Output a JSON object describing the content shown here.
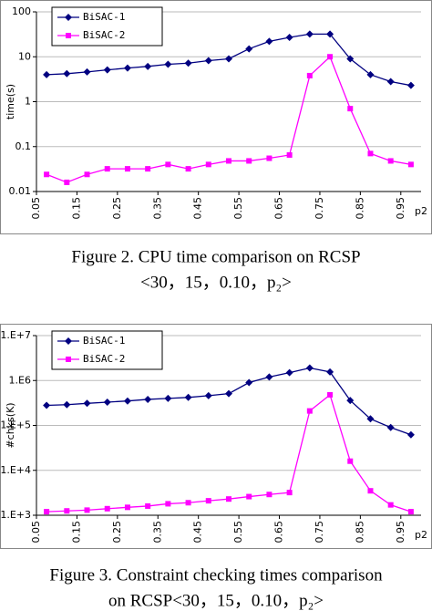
{
  "chart_data": [
    {
      "type": "line",
      "y_label": "time(s)",
      "x_label": "p2",
      "log_y": true,
      "grid": true,
      "legend": "upper left",
      "caption": [
        "Figure 2. CPU time comparison on RCSP",
        "<30，15，0.10，p₂>"
      ],
      "categories": [
        "0.05",
        null,
        "0.15",
        null,
        "0.25",
        null,
        "0.35",
        null,
        "0.45",
        null,
        "0.55",
        null,
        "0.65",
        null,
        "0.75",
        null,
        "0.85",
        null,
        "0.95"
      ],
      "ylim": [
        0.01,
        100
      ],
      "yticks": [
        0.01,
        0.1,
        1,
        10,
        100
      ],
      "series": [
        {
          "name": "BiSAC-1",
          "color": "#000080",
          "marker": "diamond",
          "values": [
            4.0,
            4.2,
            4.6,
            5.1,
            5.6,
            6.1,
            6.8,
            7.2,
            8.2,
            9.0,
            15,
            22,
            27,
            32,
            32,
            9,
            4,
            2.8,
            2.3
          ]
        },
        {
          "name": "BiSAC-2",
          "color": "#ff00ff",
          "marker": "square",
          "values": [
            0.024,
            0.016,
            0.024,
            0.032,
            0.032,
            0.032,
            0.04,
            0.032,
            0.04,
            0.048,
            0.048,
            0.055,
            0.065,
            3.8,
            10,
            0.7,
            0.07,
            0.048,
            0.04
          ]
        }
      ]
    },
    {
      "type": "line",
      "y_label": "#chks(K)",
      "x_label": "p2",
      "log_y": true,
      "grid": true,
      "legend": "upper left",
      "caption": [
        "Figure 3. Constraint checking times comparison",
        "on RCSP<30，15，0.10，p₂>"
      ],
      "categories": [
        "0.05",
        null,
        "0.15",
        null,
        "0.25",
        null,
        "0.35",
        null,
        "0.45",
        null,
        "0.55",
        null,
        "0.65",
        null,
        "0.75",
        null,
        "0.85",
        null,
        "0.95"
      ],
      "ylim": [
        1000,
        10000000
      ],
      "yticks": [
        {
          "value": 1000,
          "label": "1.E+3"
        },
        {
          "value": 10000,
          "label": "1.E+4"
        },
        {
          "value": 100000,
          "label": "1.E+5"
        },
        {
          "value": 1000000,
          "label": "1.E6"
        },
        {
          "value": 10000000,
          "label": "1.E+7"
        }
      ],
      "series": [
        {
          "name": "BiSAC-1",
          "color": "#000080",
          "marker": "diamond",
          "values": [
            280000,
            290000,
            310000,
            330000,
            350000,
            380000,
            400000,
            420000,
            460000,
            510000,
            900000,
            1200000,
            1500000,
            1900000,
            1550000,
            360000,
            140000,
            90000,
            62000
          ]
        },
        {
          "name": "BiSAC-2",
          "color": "#ff00ff",
          "marker": "square",
          "values": [
            1200,
            1250,
            1300,
            1400,
            1500,
            1600,
            1800,
            1900,
            2100,
            2300,
            2600,
            2900,
            3200,
            210000,
            480000,
            16000,
            3500,
            1700,
            1200
          ]
        }
      ]
    }
  ]
}
